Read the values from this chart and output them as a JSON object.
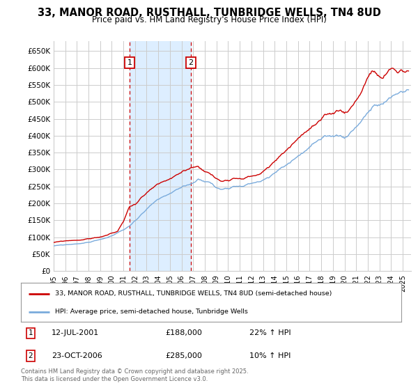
{
  "title": "33, MANOR ROAD, RUSTHALL, TUNBRIDGE WELLS, TN4 8UD",
  "subtitle": "Price paid vs. HM Land Registry's House Price Index (HPI)",
  "ylabel_ticks": [
    "£0",
    "£50K",
    "£100K",
    "£150K",
    "£200K",
    "£250K",
    "£300K",
    "£350K",
    "£400K",
    "£450K",
    "£500K",
    "£550K",
    "£600K",
    "£650K"
  ],
  "ytick_values": [
    0,
    50000,
    100000,
    150000,
    200000,
    250000,
    300000,
    350000,
    400000,
    450000,
    500000,
    550000,
    600000,
    650000
  ],
  "ylim": [
    0,
    680000
  ],
  "xlim_start": 1995.0,
  "xlim_end": 2025.7,
  "purchase1_date": 2001.53,
  "purchase1_price": 188000,
  "purchase1_label": "1",
  "purchase2_date": 2006.81,
  "purchase2_price": 285000,
  "purchase2_label": "2",
  "purchase1_info": "12-JUL-2001",
  "purchase1_amount": "£188,000",
  "purchase1_hpi": "22% ↑ HPI",
  "purchase2_info": "23-OCT-2006",
  "purchase2_amount": "£285,000",
  "purchase2_hpi": "10% ↑ HPI",
  "legend_line1": "33, MANOR ROAD, RUSTHALL, TUNBRIDGE WELLS, TN4 8UD (semi-detached house)",
  "legend_line2": "HPI: Average price, semi-detached house, Tunbridge Wells",
  "footer": "Contains HM Land Registry data © Crown copyright and database right 2025.\nThis data is licensed under the Open Government Licence v3.0.",
  "line1_color": "#cc0000",
  "line2_color": "#7aabdc",
  "shading_color": "#ddeeff",
  "grid_color": "#cccccc",
  "background_color": "#ffffff",
  "purchase_box_color": "#cc0000",
  "vline_color": "#cc0000"
}
